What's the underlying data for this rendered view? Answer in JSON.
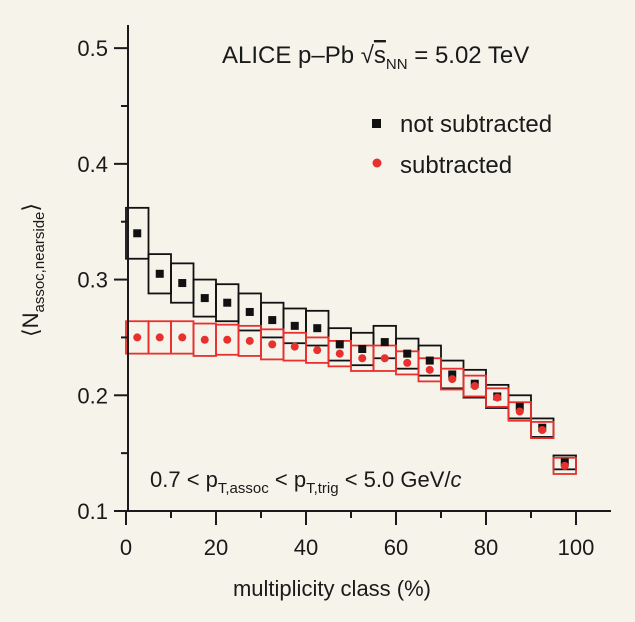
{
  "chart_data": {
    "type": "scatter",
    "title": {
      "main": "ALICE p–Pb √",
      "var": "s",
      "var_sub": "NN",
      "value": " = 5.02 TeV"
    },
    "xlabel": "multiplicity class (%)",
    "ylabel": {
      "left": "⟨N",
      "sub": "assoc,nearside",
      "right": "⟩"
    },
    "xlim": [
      0,
      105
    ],
    "ylim": [
      0.1,
      0.52
    ],
    "x_ticks": [
      0,
      20,
      40,
      60,
      80,
      100
    ],
    "x_tick_labels": [
      "0",
      "20",
      "40",
      "60",
      "80",
      "100"
    ],
    "y_ticks": [
      0.1,
      0.2,
      0.3,
      0.4,
      0.5
    ],
    "y_tick_labels": [
      "0.1",
      "0.2",
      "0.3",
      "0.4",
      "0.5"
    ],
    "grid": false,
    "legend_position": "top-right",
    "annotation": {
      "p1": "0.7 < p",
      "s1": "T,assoc",
      "p2": " < p",
      "s2": "T,trig",
      "p3": " < 5.0 GeV/",
      "c": "c"
    },
    "series": [
      {
        "name": "not subtracted",
        "color": "#111111",
        "marker": "square",
        "x": [
          2.5,
          7.5,
          12.5,
          17.5,
          22.5,
          27.5,
          32.5,
          37.5,
          42.5,
          47.5,
          52.5,
          57.5,
          62.5,
          67.5,
          72.5,
          77.5,
          82.5,
          87.5,
          92.5,
          97.5
        ],
        "y": [
          0.34,
          0.305,
          0.297,
          0.284,
          0.28,
          0.272,
          0.265,
          0.26,
          0.258,
          0.244,
          0.24,
          0.246,
          0.236,
          0.23,
          0.218,
          0.21,
          0.199,
          0.19,
          0.172,
          0.142
        ],
        "sys_err": [
          0.022,
          0.017,
          0.017,
          0.016,
          0.016,
          0.016,
          0.015,
          0.015,
          0.015,
          0.014,
          0.014,
          0.014,
          0.013,
          0.013,
          0.012,
          0.012,
          0.01,
          0.01,
          0.008,
          0.006
        ]
      },
      {
        "name": "subtracted",
        "color": "#e8302e",
        "marker": "circle",
        "x": [
          2.5,
          7.5,
          12.5,
          17.5,
          22.5,
          27.5,
          32.5,
          37.5,
          42.5,
          47.5,
          52.5,
          57.5,
          62.5,
          67.5,
          72.5,
          77.5,
          82.5,
          87.5,
          92.5,
          97.5
        ],
        "y": [
          0.25,
          0.25,
          0.25,
          0.248,
          0.248,
          0.247,
          0.244,
          0.242,
          0.239,
          0.236,
          0.232,
          0.232,
          0.228,
          0.222,
          0.214,
          0.208,
          0.198,
          0.186,
          0.17,
          0.139
        ],
        "sys_err": [
          0.014,
          0.014,
          0.014,
          0.014,
          0.013,
          0.013,
          0.013,
          0.012,
          0.011,
          0.011,
          0.011,
          0.011,
          0.01,
          0.01,
          0.009,
          0.009,
          0.008,
          0.008,
          0.007,
          0.007
        ]
      }
    ]
  }
}
